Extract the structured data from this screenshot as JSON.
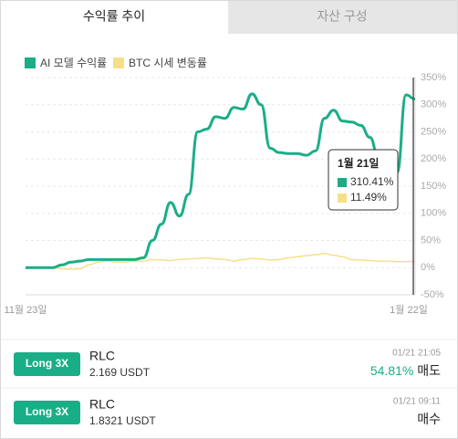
{
  "tabs": [
    "수익률 추이",
    "자산 구성"
  ],
  "chart": {
    "type": "line",
    "series": [
      {
        "name": "AI 모델 수익률",
        "color": "#1aae87",
        "values": [
          0,
          0,
          0,
          0,
          5,
          10,
          12,
          15,
          15,
          15,
          15,
          15,
          15,
          18,
          50,
          80,
          120,
          95,
          135,
          250,
          255,
          278,
          275,
          295,
          292,
          320,
          300,
          220,
          212,
          210,
          210,
          207,
          215,
          275,
          290,
          270,
          268,
          262,
          240,
          200,
          175,
          175,
          318,
          310.41
        ]
      },
      {
        "name": "BTC 시세 변동률",
        "color": "#f7df8a",
        "values": [
          0,
          0,
          0,
          0,
          -2,
          -3,
          -2,
          5,
          10,
          12,
          10,
          10,
          12,
          12,
          15,
          14,
          13,
          15,
          16,
          17,
          18,
          16,
          15,
          12,
          15,
          17,
          16,
          14,
          15,
          18,
          20,
          22,
          24,
          26,
          23,
          20,
          15,
          14,
          13,
          12,
          12,
          11,
          11,
          11.49
        ]
      }
    ],
    "x_labels": [
      "11월 23일",
      "1월 22일"
    ],
    "ylim": [
      -50,
      350
    ],
    "yticks": [
      {
        "value": 350,
        "label": "350%"
      },
      {
        "value": 300,
        "label": "300%"
      },
      {
        "value": 250,
        "label": "250%"
      },
      {
        "value": 200,
        "label": "200%"
      },
      {
        "value": 150,
        "label": "150%"
      },
      {
        "value": 100,
        "label": "100%"
      },
      {
        "value": 50,
        "label": "50%"
      },
      {
        "value": 0,
        "label": "0%"
      },
      {
        "value": -50,
        "label": "-50%"
      }
    ],
    "grid": true,
    "tooltip": {
      "date": "1월 21일",
      "values": [
        "310.41%",
        "11.49%"
      ]
    }
  },
  "trades": [
    {
      "badge": "Long 3X",
      "symbol": "RLC",
      "amount": "2.169 USDT",
      "time": "01/21 21:05",
      "return": "54.81%",
      "side": "매도"
    },
    {
      "badge": "Long 3X",
      "symbol": "RLC",
      "amount": "1.8321 USDT",
      "time": "01/21 09:11",
      "side": "매수"
    }
  ]
}
